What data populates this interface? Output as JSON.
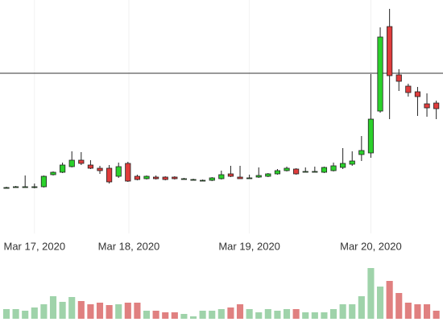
{
  "chart_data": {
    "type": "candlestick",
    "x": [
      0,
      1,
      2,
      3,
      4,
      5,
      6,
      7,
      8,
      9,
      10,
      11,
      12,
      13,
      14,
      15,
      16,
      17,
      18,
      19,
      20,
      21,
      22,
      23,
      24,
      25,
      26,
      27,
      28,
      29,
      30,
      31,
      32,
      33,
      34,
      35,
      36,
      37,
      38,
      39,
      40,
      41,
      42,
      43,
      44,
      45,
      46
    ],
    "open": [
      67,
      68,
      68,
      68,
      68,
      83,
      86,
      93,
      101,
      95,
      91,
      91,
      81,
      97,
      81,
      78,
      80,
      80,
      80,
      78,
      77,
      76,
      76,
      78,
      84,
      80,
      79,
      80,
      81,
      84,
      88,
      90,
      87,
      87,
      86,
      88,
      92,
      96,
      108,
      110,
      162,
      267,
      207,
      193,
      186,
      171,
      172
    ],
    "high": [
      68,
      69,
      82,
      72,
      82,
      87,
      98,
      112,
      111,
      101,
      94,
      95,
      98,
      99,
      83,
      82,
      82,
      81,
      81,
      79,
      78,
      77,
      80,
      88,
      94,
      94,
      83,
      92,
      85,
      90,
      93,
      91,
      92,
      93,
      93,
      98,
      116,
      112,
      131,
      208,
      266,
      289,
      214,
      196,
      192,
      184,
      175
    ],
    "low": [
      66,
      67,
      67,
      66,
      67,
      82,
      85,
      92,
      95,
      90,
      84,
      72,
      79,
      74,
      76,
      77,
      77,
      76,
      77,
      77,
      76,
      75,
      75,
      77,
      80,
      78,
      78,
      79,
      80,
      83,
      87,
      83,
      86,
      86,
      85,
      87,
      90,
      94,
      100,
      104,
      160,
      152,
      187,
      180,
      156,
      155,
      152
    ],
    "close": [
      67,
      68,
      68,
      68,
      81,
      86,
      95,
      101,
      97,
      91,
      88,
      74,
      93,
      75,
      77,
      81,
      78,
      77,
      78,
      78,
      77,
      76,
      79,
      83,
      81,
      78,
      79,
      82,
      84,
      88,
      91,
      84,
      87,
      87,
      92,
      94,
      97,
      100,
      113,
      152,
      254,
      206,
      199,
      185,
      180,
      166,
      165
    ],
    "volume": [
      12,
      12,
      10,
      14,
      18,
      28,
      21,
      27,
      22,
      18,
      20,
      17,
      18,
      20,
      20,
      10,
      10,
      8,
      8,
      6,
      3,
      10,
      10,
      12,
      14,
      18,
      12,
      8,
      12,
      10,
      12,
      12,
      8,
      8,
      8,
      12,
      18,
      18,
      28,
      63,
      40,
      47,
      32,
      20,
      18,
      18,
      10
    ],
    "xlim": [
      -0.69,
      46.72
    ],
    "xticks": [
      {
        "value": 3,
        "label": "Mar 17, 2020"
      },
      {
        "value": 13.1,
        "label": "Mar 18, 2020"
      },
      {
        "value": 26,
        "label": "Mar 19, 2020"
      },
      {
        "value": 39,
        "label": "Mar 20, 2020"
      }
    ],
    "ylim": [
      0,
      300
    ],
    "volume_lim": [
      0,
      70
    ],
    "price_line": 209,
    "up_color": "#2bd12b",
    "down_color": "#e03c3c",
    "up_volume_color": "#9fd3aa",
    "down_volume_color": "#e08080"
  }
}
